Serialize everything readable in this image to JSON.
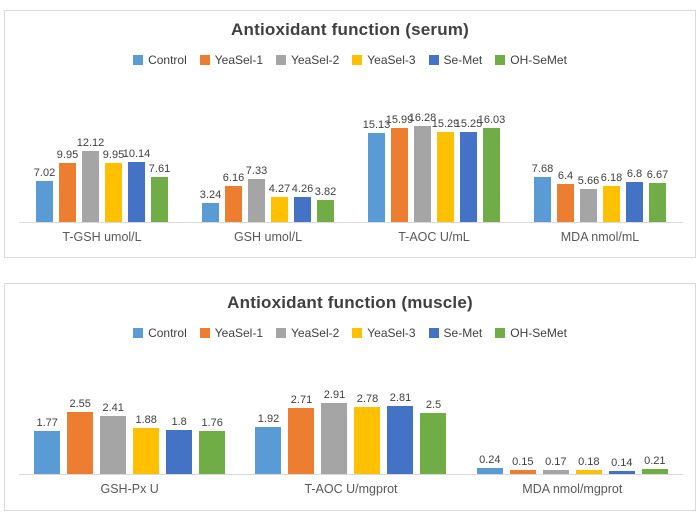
{
  "window": {
    "background": "#ffffff",
    "panel_border": "#d9d9d9",
    "axis_line_color": "#d9d9d9"
  },
  "palette": {
    "series_colors": [
      "#5B9BD5",
      "#ED7D31",
      "#A5A5A5",
      "#FFC000",
      "#4472C4",
      "#70AD47"
    ],
    "title_color": "#404040",
    "data_label_color": "#404040",
    "category_label_color": "#595959",
    "legend_label_color": "#404040"
  },
  "chart_data": [
    {
      "type": "bar",
      "title": "Antioxidant function (serum)",
      "legend_position": "top",
      "grid": false,
      "data_labels": true,
      "y_axis_visible": false,
      "ylim": [
        0,
        18
      ],
      "categories": [
        "T-GSH umol/L",
        "GSH umol/L",
        "T-AOC U/mL",
        "MDA nmol/mL"
      ],
      "series": [
        {
          "name": "Control",
          "values": [
            7.02,
            3.24,
            15.13,
            7.68
          ]
        },
        {
          "name": "YeaSel-1",
          "values": [
            9.95,
            6.16,
            15.99,
            6.4
          ]
        },
        {
          "name": "YeaSel-2",
          "values": [
            12.12,
            7.33,
            16.28,
            5.66
          ]
        },
        {
          "name": "YeaSel-3",
          "values": [
            9.95,
            4.27,
            15.29,
            6.18
          ]
        },
        {
          "name": "Se-Met",
          "values": [
            10.14,
            4.26,
            15.25,
            6.8
          ]
        },
        {
          "name": "OH-SeMet",
          "values": [
            7.61,
            3.82,
            16.03,
            6.67
          ]
        }
      ]
    },
    {
      "type": "bar",
      "title": "Antioxidant function (muscle)",
      "legend_position": "top",
      "grid": false,
      "data_labels": true,
      "y_axis_visible": false,
      "ylim": [
        0,
        3.3
      ],
      "categories": [
        "GSH-Px U",
        "T-AOC U/mgprot",
        "MDA nmol/mgprot"
      ],
      "series": [
        {
          "name": "Control",
          "values": [
            1.77,
            1.92,
            0.24
          ]
        },
        {
          "name": "YeaSel-1",
          "values": [
            2.55,
            2.71,
            0.15
          ]
        },
        {
          "name": "YeaSel-2",
          "values": [
            2.41,
            2.91,
            0.17
          ]
        },
        {
          "name": "YeaSel-3",
          "values": [
            1.88,
            2.78,
            0.18
          ]
        },
        {
          "name": "Se-Met",
          "values": [
            1.8,
            2.81,
            0.14
          ]
        },
        {
          "name": "OH-SeMet",
          "values": [
            1.76,
            2.5,
            0.21
          ]
        }
      ]
    }
  ]
}
